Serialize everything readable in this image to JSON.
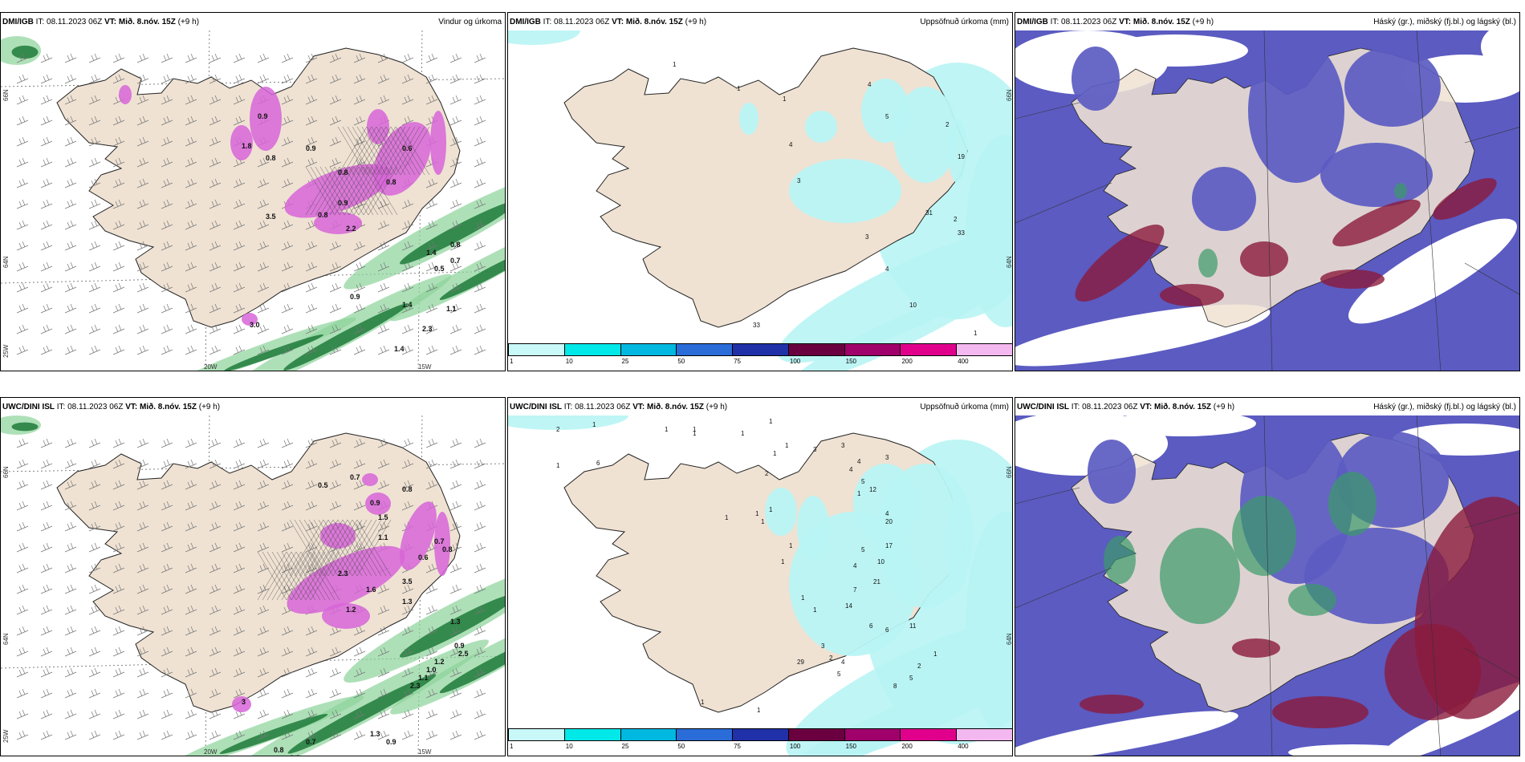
{
  "rows": [
    {
      "panels": [
        {
          "model": "DMI/IGB",
          "it_label": "IT:",
          "it_value": "08.11.2023 06Z",
          "vt_label": "VT:",
          "vt_value": "Mið. 8.nóv. 15Z",
          "lead": "(+9 h)",
          "title": "Vindur og úrkoma",
          "type": "wind",
          "labels": [
            "0.9",
            "0.8",
            "1.8",
            "0.9",
            "0.8",
            "3.5",
            "0.9",
            "0.8",
            "0.6",
            "0.8",
            "2.2",
            "0.9",
            "2.3",
            "0.9",
            "1.4",
            "0.5",
            "0.7",
            "0.8",
            "1.4",
            "0.9",
            "1.1",
            "1.4",
            "3.0"
          ],
          "axis": {
            "lat1": "66N",
            "lat2": "64N",
            "lat3": "25W",
            "lon1": "20W",
            "lon2": "15W"
          }
        },
        {
          "model": "DMI/IGB",
          "it_label": "IT:",
          "it_value": "08.11.2023 06Z",
          "vt_label": "VT:",
          "vt_value": "Mið. 8.nóv. 15Z",
          "lead": "(+9 h)",
          "title": "Uppsöfnuð úrkoma (mm)",
          "type": "precip",
          "labels": [
            "4",
            "1",
            "3",
            "5",
            "2",
            "19",
            "33",
            "31",
            "2",
            "3",
            "4",
            "1",
            "10",
            "4",
            "33",
            "1",
            "1"
          ],
          "axis": {
            "lat1": "66N",
            "lat2": "64N"
          }
        },
        {
          "model": "DMI/IGB",
          "it_label": "IT:",
          "it_value": "08.11.2023 06Z",
          "vt_label": "VT:",
          "vt_value": "Mið. 8.nóv. 15Z",
          "lead": "(+9 h)",
          "title": "Háský (gr.), miðský (fj.bl.) og lágský (bl.)",
          "type": "cloud",
          "labels": []
        }
      ]
    },
    {
      "panels": [
        {
          "model": "UWC/DINI ISL",
          "it_label": "IT:",
          "it_value": "08.11.2023 06Z",
          "vt_label": "VT:",
          "vt_value": "Mið. 8.nóv. 15Z",
          "lead": "(+9 h)",
          "title": "",
          "type": "wind",
          "labels": [
            "0.7",
            "0.5",
            "1.5",
            "0.9",
            "0.8",
            "2.3",
            "1.6",
            "3.5",
            "1.2",
            "1.3",
            "0.6",
            "0.7",
            "0.8",
            "1.1",
            "1.3",
            "0.9",
            "2.5",
            "1.2",
            "1.1",
            "2.3",
            "1.0",
            "3",
            "0.8",
            "0.7",
            "0.6",
            "1.3",
            "0.9"
          ],
          "axis": {
            "lat1": "66N",
            "lat2": "64N",
            "lat3": "25W",
            "lon1": "20W",
            "lon2": "15W"
          }
        },
        {
          "model": "UWC/DINI ISL",
          "it_label": "IT:",
          "it_value": "08.11.2023 06Z",
          "vt_label": "VT:",
          "vt_value": "Mið. 8.nóv. 15Z",
          "lead": "(+9 h)",
          "title": "Uppsöfnuð úrkoma (mm)",
          "type": "precip",
          "labels": [
            "2",
            "1",
            "6",
            "1",
            "1",
            "1",
            "1",
            "1",
            "1",
            "1",
            "2",
            "1",
            "1",
            "1",
            "1",
            "3",
            "3",
            "4",
            "4",
            "5",
            "3",
            "12",
            "1",
            "4",
            "20",
            "17",
            "10",
            "5",
            "4",
            "7",
            "14",
            "21",
            "1",
            "1",
            "1",
            "1",
            "3",
            "2",
            "4",
            "6",
            "6",
            "11",
            "2",
            "1",
            "5",
            "8",
            "5",
            "3",
            "20",
            "1",
            "1",
            "1",
            "29"
          ],
          "axis": {
            "lat1": "66N",
            "lat2": "64N"
          }
        },
        {
          "model": "UWC/DINI ISL",
          "it_label": "IT:",
          "it_value": "08.11.2023 06Z",
          "vt_label": "VT:",
          "vt_value": "Mið. 8.nóv. 15Z",
          "lead": "(+9 h)",
          "title": "Háský (gr.), miðský (fj.bl.) og lágský (bl.)",
          "type": "cloud",
          "labels": []
        }
      ]
    }
  ],
  "precip_colorbar": {
    "ticks": [
      "1",
      "10",
      "25",
      "50",
      "75",
      "100",
      "150",
      "200",
      "400"
    ],
    "colors": [
      "#c8f8f8",
      "#00e8e8",
      "#00b8e0",
      "#2a6cd8",
      "#2030a8",
      "#6a0040",
      "#a0006a",
      "#e0008c",
      "#f4b8f0"
    ]
  },
  "colors": {
    "land": "#efe2d3",
    "sea": "#ffffff",
    "precip_magenta": "#d765d8",
    "green_dark": "#1f7a3a",
    "green_light": "#8cd39a",
    "cyan_light": "#b8f4f4",
    "cloud_high": "#5b5bc2",
    "cloud_mid": "#8b1a3c",
    "cloud_low": "#3a9a6a"
  }
}
